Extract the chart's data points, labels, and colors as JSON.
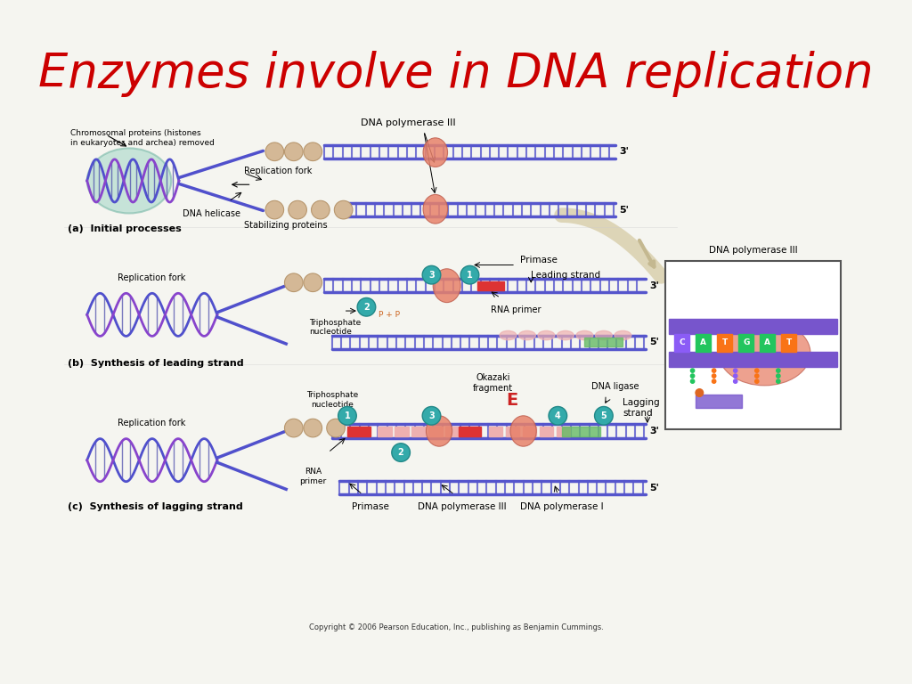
{
  "title": "Enzymes involve in DNA replication",
  "title_color": "#CC0000",
  "title_fontsize": 38,
  "bg_color": "#F5F5F0",
  "copyright": "Copyright © 2006 Pearson Education, Inc., publishing as Benjamin Cummings.",
  "sections": {
    "a_label": "(a)  Initial processes",
    "b_label": "(b)  Synthesis of leading strand",
    "c_label": "(c)  Synthesis of lagging strand"
  },
  "labels_a": {
    "chromosomal": "Chromosomal proteins (histones\nin eukaryotes and archea) removed",
    "dna_pol3_top": "DNA polymerase III",
    "replication_fork": "Replication fork",
    "dna_helicase": "DNA helicase",
    "stabilizing": "Stabilizing proteins",
    "prime3": "3'",
    "prime5": "5'"
  },
  "labels_b": {
    "replication_fork": "Replication fork",
    "triphosphate": "Triphosphate\nnucleotide",
    "leading_strand": "Leading strand",
    "rna_primer": "RNA primer",
    "primase": "Primase",
    "pp": "P + P",
    "prime3": "3'",
    "prime5": "5'"
  },
  "labels_c": {
    "replication_fork": "Replication fork",
    "rna_primer": "RNA\nprimer",
    "triphosphate": "Triphosphate\nnucleotide",
    "okazaki": "Okazaki\nfragment",
    "lagging_strand": "Lagging\nstrand",
    "dna_ligase": "DNA ligase",
    "primase": "Primase",
    "dna_pol3": "DNA polymerase III",
    "dna_pol1": "DNA polymerase I",
    "prime3": "3'",
    "prime5": "5'"
  },
  "inset_label": "DNA polymerase III",
  "colors": {
    "dna_blue": "#4040CC",
    "dna_purple": "#6633CC",
    "salmon": "#E8826A",
    "tan": "#D4B896",
    "teal_circle": "#33AAAA",
    "red_segment": "#CC2222",
    "green_segment": "#66CC66",
    "background": "#F5F5F0",
    "arrow_tan": "#D4C8A0",
    "rna_pink": "#EEB0B0",
    "inset_border": "#333333",
    "base_c": "#8B5CF6",
    "base_a": "#22C55E",
    "base_t": "#F97316",
    "base_g": "#EAB308"
  }
}
